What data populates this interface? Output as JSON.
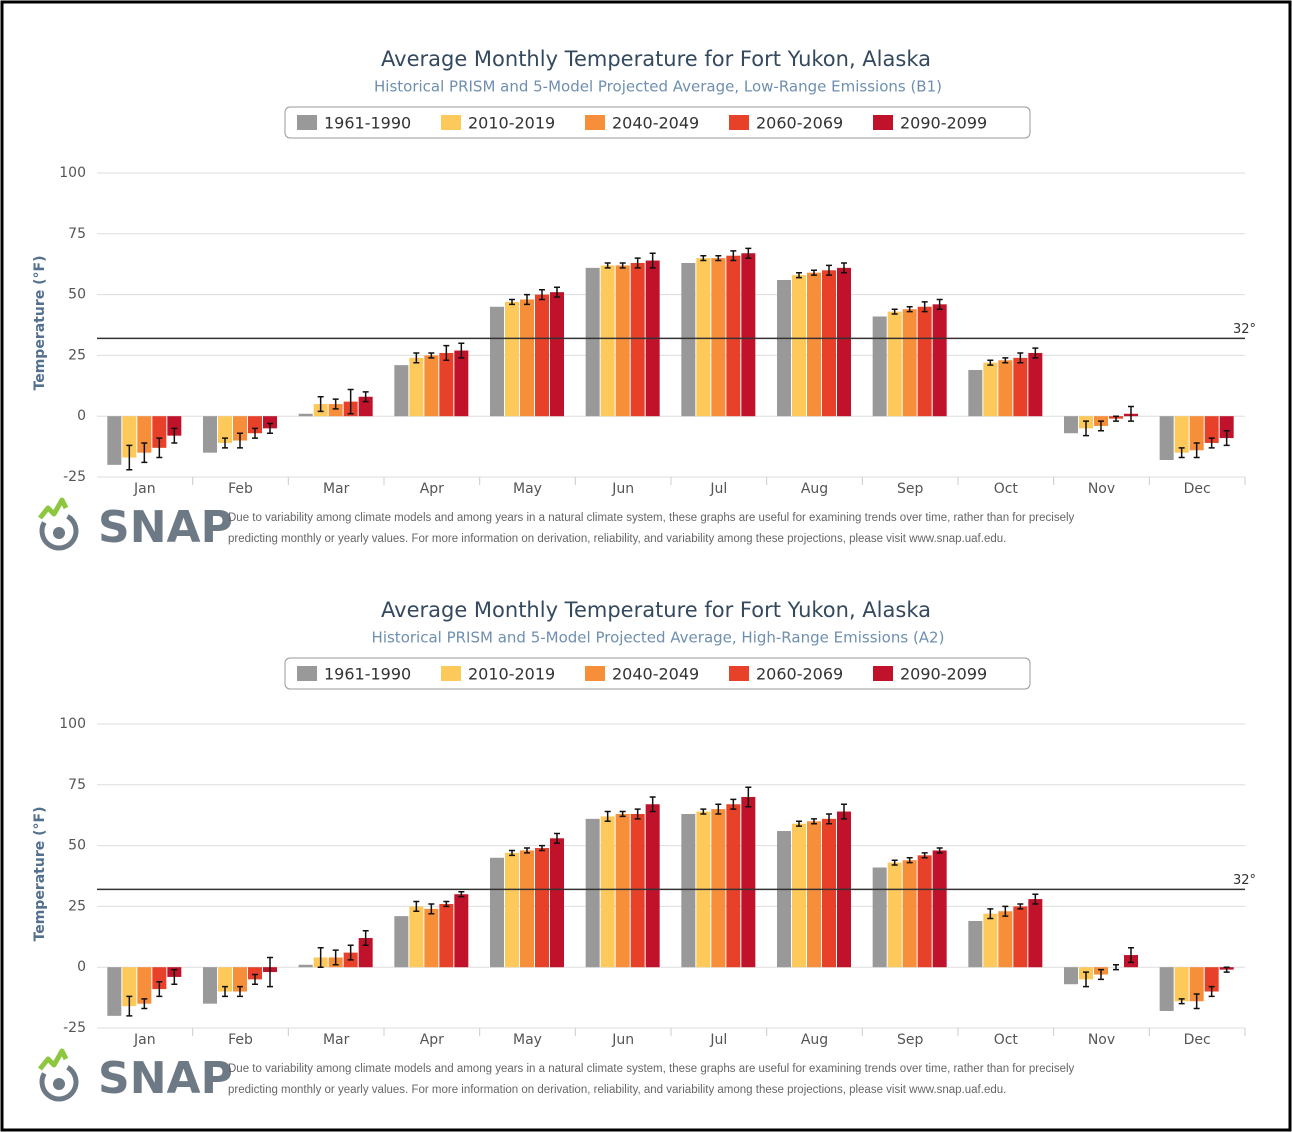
{
  "chart_data": [
    {
      "type": "bar",
      "title": "Average Monthly Temperature for Fort Yukon, Alaska",
      "subtitle": "Historical PRISM and 5-Model Projected Average, Low-Range Emissions (B1)",
      "y_label": "Temperature (°F)",
      "categories": [
        "Jan",
        "Feb",
        "Mar",
        "Apr",
        "May",
        "Jun",
        "Jul",
        "Aug",
        "Sep",
        "Oct",
        "Nov",
        "Dec"
      ],
      "ylim": [
        -25,
        100
      ],
      "yticks": [
        -25,
        0,
        25,
        50,
        75,
        100
      ],
      "grid": true,
      "ref_line": {
        "value": 32,
        "label": "32°"
      },
      "series": [
        {
          "name": "1961-1990",
          "color": "#999999",
          "values": [
            -20,
            -15,
            1,
            21,
            45,
            61,
            63,
            56,
            41,
            19,
            -7,
            -18
          ]
        },
        {
          "name": "2010-2019",
          "color": "#fdc95a",
          "values": [
            -17,
            -11,
            5,
            24,
            47,
            62,
            65,
            58,
            43,
            22,
            -5,
            -15
          ],
          "errors": [
            5,
            2,
            3,
            2,
            1,
            1,
            1,
            1,
            1,
            1,
            3,
            2
          ]
        },
        {
          "name": "2040-2049",
          "color": "#f68e3a",
          "values": [
            -15,
            -10,
            5,
            25,
            48,
            62,
            65,
            59,
            44,
            23,
            -4,
            -14
          ],
          "errors": [
            4,
            3,
            2,
            1,
            2,
            1,
            1,
            1,
            1,
            1,
            2,
            3
          ]
        },
        {
          "name": "2060-2069",
          "color": "#e8412a",
          "values": [
            -13,
            -7,
            6,
            26,
            50,
            63,
            66,
            60,
            45,
            24,
            -1,
            -11
          ],
          "errors": [
            4,
            2,
            5,
            3,
            2,
            2,
            2,
            2,
            2,
            2,
            1,
            2
          ]
        },
        {
          "name": "2090-2099",
          "color": "#c0122b",
          "values": [
            -8,
            -5,
            8,
            27,
            51,
            64,
            67,
            61,
            46,
            26,
            1,
            -9
          ],
          "errors": [
            3,
            2,
            2,
            3,
            2,
            3,
            2,
            2,
            2,
            2,
            3,
            3
          ]
        }
      ],
      "logo_text": "SNAP",
      "note": [
        "Due to variability among climate models and among years in a natural climate system, these graphs are useful for examining trends over time, rather than for precisely",
        "predicting monthly or yearly values. For more information on derivation, reliability, and variability among these projections, please visit www.snap.uaf.edu."
      ]
    },
    {
      "type": "bar",
      "title": "Average Monthly Temperature for Fort Yukon, Alaska",
      "subtitle": "Historical PRISM and 5-Model Projected Average, High-Range Emissions (A2)",
      "y_label": "Temperature (°F)",
      "categories": [
        "Jan",
        "Feb",
        "Mar",
        "Apr",
        "May",
        "Jun",
        "Jul",
        "Aug",
        "Sep",
        "Oct",
        "Nov",
        "Dec"
      ],
      "ylim": [
        -25,
        100
      ],
      "yticks": [
        -25,
        0,
        25,
        50,
        75,
        100
      ],
      "grid": true,
      "ref_line": {
        "value": 32,
        "label": "32°"
      },
      "series": [
        {
          "name": "1961-1990",
          "color": "#999999",
          "values": [
            -20,
            -15,
            1,
            21,
            45,
            61,
            63,
            56,
            41,
            19,
            -7,
            -18
          ]
        },
        {
          "name": "2010-2019",
          "color": "#fdc95a",
          "values": [
            -16,
            -10,
            4,
            25,
            47,
            62,
            64,
            59,
            43,
            22,
            -5,
            -14
          ],
          "errors": [
            4,
            2,
            4,
            2,
            1,
            2,
            1,
            1,
            1,
            2,
            3,
            1
          ]
        },
        {
          "name": "2040-2049",
          "color": "#f68e3a",
          "values": [
            -15,
            -10,
            4,
            24,
            48,
            63,
            65,
            60,
            44,
            23,
            -3,
            -14
          ],
          "errors": [
            2,
            2,
            3,
            2,
            1,
            1,
            2,
            1,
            1,
            2,
            2,
            3
          ]
        },
        {
          "name": "2060-2069",
          "color": "#e8412a",
          "values": [
            -9,
            -5,
            6,
            26,
            49,
            63,
            67,
            61,
            46,
            25,
            0,
            -10
          ],
          "errors": [
            3,
            2,
            3,
            1,
            1,
            2,
            2,
            2,
            1,
            1,
            1,
            2
          ]
        },
        {
          "name": "2090-2099",
          "color": "#c0122b",
          "values": [
            -4,
            -2,
            12,
            30,
            53,
            67,
            70,
            64,
            48,
            28,
            5,
            -1
          ],
          "errors": [
            3,
            6,
            3,
            1,
            2,
            3,
            4,
            3,
            1,
            2,
            3,
            1
          ]
        }
      ],
      "logo_text": "SNAP",
      "note": [
        "Due to variability among climate models and among years in a natural climate system, these graphs are useful for examining trends over time, rather than for precisely",
        "predicting monthly or yearly values. For more information on derivation, reliability, and variability among these projections, please visit www.snap.uaf.edu."
      ]
    }
  ]
}
